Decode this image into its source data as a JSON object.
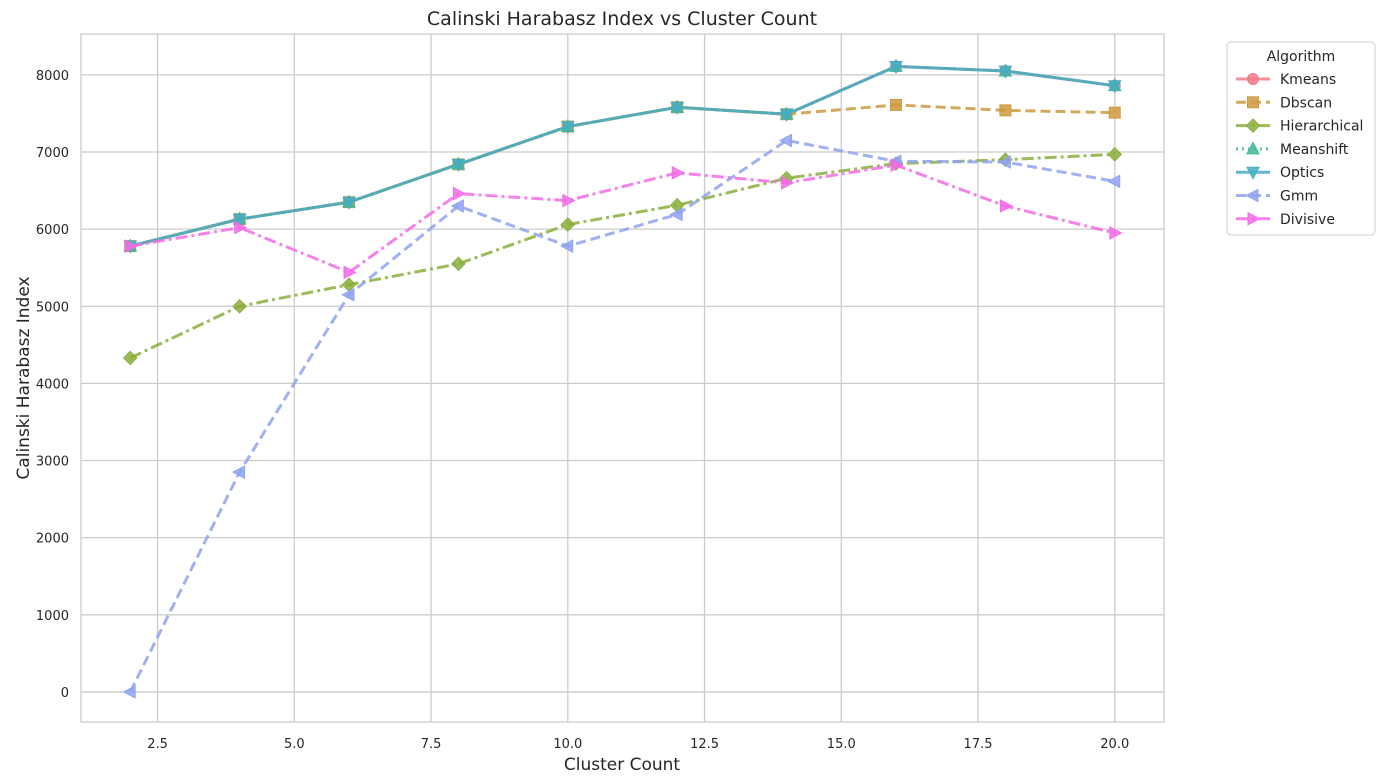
{
  "chart_data": {
    "type": "line",
    "title": "Calinski Harabasz Index vs Cluster Count",
    "xlabel": "Cluster Count",
    "ylabel": "Calinski Harabasz Index",
    "xlim": [
      1.1,
      20.9
    ],
    "ylim": [
      -390,
      8530
    ],
    "xticks": [
      2.5,
      5.0,
      7.5,
      10.0,
      12.5,
      15.0,
      17.5,
      20.0
    ],
    "xtick_labels": [
      "2.5",
      "5.0",
      "7.5",
      "10.0",
      "12.5",
      "15.0",
      "17.5",
      "20.0"
    ],
    "yticks": [
      0,
      1000,
      2000,
      3000,
      4000,
      5000,
      6000,
      7000,
      8000
    ],
    "ytick_labels": [
      "0",
      "1000",
      "2000",
      "3000",
      "4000",
      "5000",
      "6000",
      "7000",
      "8000"
    ],
    "grid": true,
    "legend": {
      "title": "Algorithm",
      "position": "outside-top-right"
    },
    "x": [
      2,
      4,
      6,
      8,
      10,
      12,
      14,
      16,
      18,
      20
    ],
    "series": [
      {
        "name": "Kmeans",
        "color": "#f07b89",
        "dash": "solid",
        "marker": "circle",
        "values": [
          5780,
          6130,
          6350,
          6840,
          7330,
          7580,
          7490,
          8110,
          8050,
          7860
        ]
      },
      {
        "name": "Dbscan",
        "color": "#cd9a40",
        "dash": "dashed",
        "marker": "square",
        "values": [
          5780,
          6130,
          6350,
          6840,
          7330,
          7580,
          7490,
          7610,
          7540,
          7510
        ]
      },
      {
        "name": "Hierarchical",
        "color": "#8aae3c",
        "dash": "dashdot",
        "marker": "diamond",
        "values": [
          4330,
          5000,
          5280,
          5550,
          6060,
          6310,
          6660,
          6850,
          6900,
          6970
        ]
      },
      {
        "name": "Meanshift",
        "color": "#3fb99a",
        "dash": "dotted",
        "marker": "triangle-up",
        "values": [
          5780,
          6130,
          6350,
          6840,
          7330,
          7580,
          7490,
          8110,
          8050,
          7860
        ]
      },
      {
        "name": "Optics",
        "color": "#44aec2",
        "dash": "solid",
        "marker": "triangle-down",
        "values": [
          5780,
          6130,
          6350,
          6840,
          7330,
          7580,
          7490,
          8110,
          8050,
          7860
        ]
      },
      {
        "name": "Gmm",
        "color": "#8fa3f0",
        "dash": "dashed",
        "marker": "triangle-left",
        "values": [
          0,
          2850,
          5150,
          6300,
          5780,
          6190,
          7150,
          6880,
          6870,
          6620
        ]
      },
      {
        "name": "Divisive",
        "color": "#f26ce6",
        "dash": "dashdot",
        "marker": "triangle-right",
        "values": [
          5780,
          6020,
          5440,
          6460,
          6370,
          6730,
          6600,
          6830,
          6300,
          5950
        ]
      }
    ]
  }
}
